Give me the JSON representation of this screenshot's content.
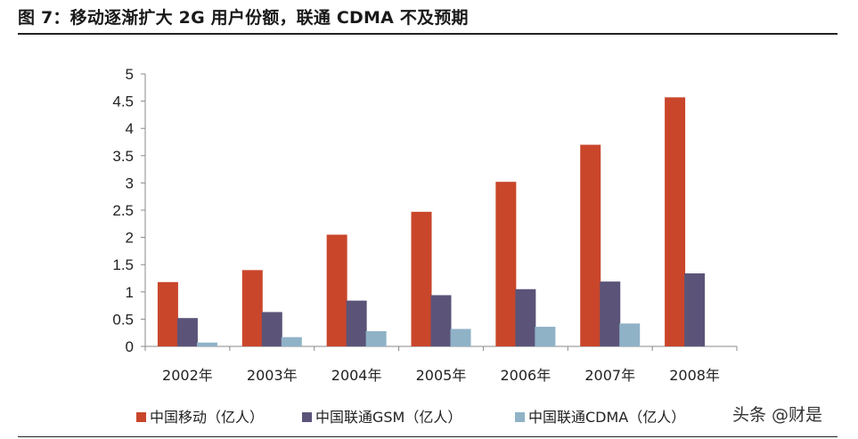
{
  "header": {
    "title": "图 7：移动逐渐扩大 2G 用户份额，联通 CDMA 不及预期"
  },
  "watermark": "头条 @财是",
  "chart_data": {
    "type": "bar",
    "title": "",
    "xlabel": "",
    "ylabel": "",
    "categories": [
      "2002年",
      "2003年",
      "2004年",
      "2005年",
      "2006年",
      "2007年",
      "2008年"
    ],
    "ylim": [
      0,
      5
    ],
    "yticks": [
      0,
      0.5,
      1,
      1.5,
      2,
      2.5,
      3,
      3.5,
      4,
      4.5,
      5
    ],
    "ytick_labels": [
      "0",
      "0.5",
      "1",
      "1.5",
      "2",
      "2.5",
      "3",
      "3.5",
      "4",
      "4.5",
      "5"
    ],
    "grid": false,
    "legend_position": "bottom",
    "series": [
      {
        "name": "中国移动（亿人）",
        "color": "#c9462b",
        "values": [
          1.18,
          1.4,
          2.05,
          2.47,
          3.02,
          3.7,
          4.57
        ]
      },
      {
        "name": "中国联通GSM（亿人）",
        "color": "#5b5478",
        "values": [
          0.52,
          0.63,
          0.84,
          0.94,
          1.05,
          1.19,
          1.34
        ]
      },
      {
        "name": "中国联通CDMA（亿人）",
        "color": "#8fb2c6",
        "values": [
          0.07,
          0.17,
          0.28,
          0.32,
          0.36,
          0.42,
          null
        ]
      }
    ]
  }
}
